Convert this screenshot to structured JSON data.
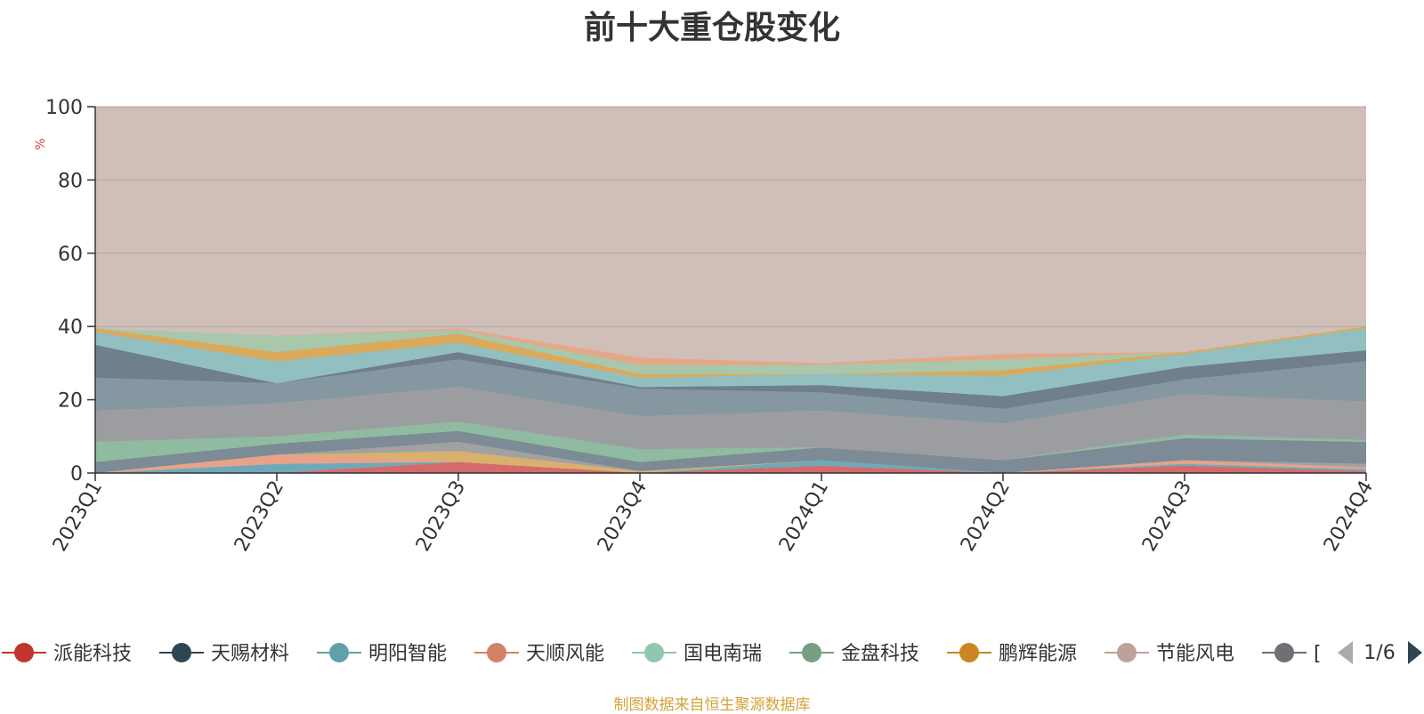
{
  "chart_data": {
    "type": "area",
    "title": "前十大重仓股变化",
    "xlabel": "",
    "ylabel": "%",
    "ylim": [
      0,
      100
    ],
    "yticks": [
      0,
      20,
      40,
      60,
      80,
      100
    ],
    "categories": [
      "2023Q1",
      "2023Q2",
      "2023Q3",
      "2023Q4",
      "2024Q1",
      "2024Q2",
      "2024Q3",
      "2024Q4"
    ],
    "grid": true,
    "legend_position": "bottom",
    "background_fill": {
      "color": "#d0bfb9",
      "value": 100
    },
    "series": [
      {
        "color": "#d46a6a",
        "values": [
          0,
          0,
          3,
          0,
          2,
          0,
          2,
          0.5
        ]
      },
      {
        "color": "#6ea9b9",
        "values": [
          0,
          2.5,
          0,
          0,
          1.5,
          0,
          0.5,
          0.5
        ]
      },
      {
        "color": "#e8a289",
        "values": [
          0,
          2.5,
          0,
          0,
          0,
          0,
          1,
          0.5
        ]
      },
      {
        "color": "#d9b06e",
        "values": [
          0,
          0,
          3,
          0.5,
          0,
          0,
          0,
          0
        ]
      },
      {
        "color": "#a1a1a1",
        "values": [
          0,
          0,
          2.5,
          0,
          0,
          0,
          0,
          1
        ]
      },
      {
        "color": "#7c8b95",
        "values": [
          3,
          3,
          3,
          2.5,
          3.5,
          3.5,
          6,
          6
        ]
      },
      {
        "color": "#8fbba0",
        "values": [
          5.5,
          2,
          2.5,
          3.5,
          0,
          0,
          1,
          0.5
        ]
      },
      {
        "color": "#9c9da0",
        "values": [
          8.5,
          9,
          9.5,
          9,
          10,
          10,
          11,
          10.5
        ]
      },
      {
        "color": "#8597a0",
        "values": [
          9,
          5.5,
          7.5,
          7.5,
          5,
          4,
          4,
          11
        ]
      },
      {
        "color": "#6f7f8b",
        "values": [
          9,
          0,
          2,
          0.5,
          2,
          3.5,
          3.5,
          3
        ]
      },
      {
        "color": "#92bfc0",
        "values": [
          3.5,
          6,
          2.5,
          2.5,
          3,
          5.5,
          3.5,
          6
        ]
      },
      {
        "color": "#d9aa5a",
        "values": [
          1,
          2.5,
          2.5,
          1,
          0,
          1.5,
          0.5,
          0.5
        ]
      },
      {
        "color": "#a8c7ab",
        "values": [
          0,
          4.5,
          1,
          2.5,
          2.5,
          3,
          0,
          0
        ]
      },
      {
        "color": "#e4a888",
        "values": [
          0,
          0,
          0.5,
          2,
          0.5,
          1.5,
          0,
          0
        ]
      }
    ]
  },
  "legend": {
    "items": [
      {
        "label": "派能科技",
        "color": "#c23531"
      },
      {
        "label": "天赐材料",
        "color": "#2f4554"
      },
      {
        "label": "明阳智能",
        "color": "#61a0a8"
      },
      {
        "label": "天顺风能",
        "color": "#d48265"
      },
      {
        "label": "国电南瑞",
        "color": "#91c7ae"
      },
      {
        "label": "金盘科技",
        "color": "#749f83"
      },
      {
        "label": "鹏辉能源",
        "color": "#ca8622"
      },
      {
        "label": "节能风电",
        "color": "#bda29a"
      },
      {
        "label": "[",
        "color": "#6e7074"
      }
    ],
    "page_indicator": "1/6",
    "prev_icon": "triangle-left-icon",
    "next_icon": "triangle-right-icon"
  },
  "source_note": "制图数据来自恒生聚源数据库"
}
